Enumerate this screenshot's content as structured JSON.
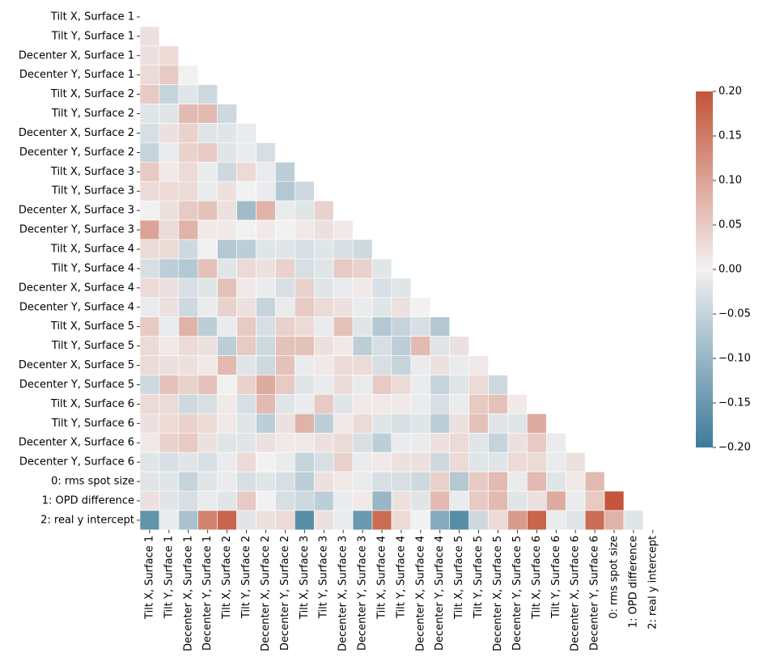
{
  "chart_data": {
    "type": "heatmap",
    "categories": [
      "Tilt X, Surface 1",
      "Tilt Y, Surface 1",
      "Decenter X, Surface 1",
      "Decenter Y, Surface 1",
      "Tilt X, Surface 2",
      "Tilt Y, Surface 2",
      "Decenter X, Surface 2",
      "Decenter Y, Surface 2",
      "Tilt X, Surface 3",
      "Tilt Y, Surface 3",
      "Decenter X, Surface 3",
      "Decenter Y, Surface 3",
      "Tilt X, Surface 4",
      "Tilt Y, Surface 4",
      "Decenter X, Surface 4",
      "Decenter Y, Surface 4",
      "Tilt X, Surface 5",
      "Tilt Y, Surface 5",
      "Decenter X, Surface 5",
      "Decenter Y, Surface 5",
      "Tilt X, Surface 6",
      "Tilt Y, Surface 6",
      "Decenter X, Surface 6",
      "Decenter Y, Surface 6",
      "0: rms spot size",
      "1: OPD difference",
      "2: real y intercept"
    ],
    "values": [
      [],
      [
        0.02
      ],
      [
        0.02,
        0.03
      ],
      [
        0.03,
        0.05,
        0.0
      ],
      [
        0.05,
        -0.05,
        -0.02,
        -0.04
      ],
      [
        -0.02,
        -0.02,
        0.07,
        0.07,
        -0.04
      ],
      [
        -0.03,
        0.02,
        0.04,
        -0.02,
        -0.02,
        -0.01
      ],
      [
        -0.05,
        -0.01,
        0.04,
        0.05,
        -0.02,
        -0.01,
        -0.03
      ],
      [
        0.05,
        0.01,
        0.03,
        -0.01,
        -0.04,
        0.03,
        -0.01,
        -0.06
      ],
      [
        0.03,
        0.03,
        0.03,
        -0.01,
        0.02,
        0.0,
        -0.01,
        -0.07,
        -0.04
      ],
      [
        0.0,
        0.02,
        0.05,
        0.06,
        0.02,
        -0.09,
        0.08,
        -0.01,
        -0.02,
        0.04
      ],
      [
        0.1,
        0.03,
        0.08,
        0.01,
        0.01,
        0.0,
        0.01,
        0.0,
        0.01,
        0.02,
        0.01
      ],
      [
        0.03,
        0.03,
        -0.04,
        0.0,
        -0.07,
        -0.06,
        -0.02,
        -0.02,
        -0.03,
        -0.02,
        -0.03,
        -0.04
      ],
      [
        -0.03,
        -0.06,
        -0.07,
        0.06,
        -0.02,
        0.03,
        0.02,
        0.04,
        -0.03,
        -0.02,
        0.05,
        0.04,
        -0.02
      ],
      [
        0.03,
        0.02,
        -0.03,
        -0.02,
        0.06,
        0.01,
        -0.01,
        -0.03,
        0.04,
        -0.02,
        -0.01,
        0.01,
        -0.03,
        -0.02
      ],
      [
        -0.01,
        0.02,
        -0.04,
        -0.01,
        0.04,
        0.02,
        -0.05,
        -0.01,
        0.05,
        0.03,
        0.02,
        -0.01,
        -0.02,
        0.02,
        0.0
      ],
      [
        0.05,
        -0.01,
        0.08,
        -0.06,
        -0.01,
        0.05,
        -0.03,
        0.04,
        0.03,
        -0.01,
        0.06,
        -0.02,
        -0.07,
        -0.05,
        -0.03,
        -0.07
      ],
      [
        0.03,
        0.01,
        0.03,
        0.02,
        -0.06,
        0.05,
        -0.04,
        0.06,
        0.06,
        0.02,
        0.01,
        -0.06,
        -0.03,
        -0.06,
        0.07,
        -0.02,
        0.02
      ],
      [
        0.03,
        0.02,
        0.02,
        0.01,
        0.07,
        -0.02,
        -0.04,
        0.06,
        -0.01,
        0.01,
        0.03,
        0.03,
        -0.03,
        -0.05,
        -0.01,
        0.02,
        -0.01,
        0.01
      ],
      [
        -0.04,
        0.06,
        0.04,
        0.06,
        0.0,
        0.04,
        0.09,
        0.05,
        -0.02,
        -0.01,
        0.03,
        -0.01,
        0.05,
        0.03,
        -0.01,
        -0.05,
        -0.02,
        0.03,
        -0.04
      ],
      [
        0.03,
        0.03,
        -0.04,
        -0.03,
        0.01,
        -0.03,
        0.07,
        -0.02,
        -0.01,
        0.05,
        -0.02,
        0.01,
        0.01,
        0.01,
        -0.01,
        -0.03,
        -0.01,
        0.05,
        0.06,
        0.01
      ],
      [
        0.02,
        0.03,
        0.04,
        0.03,
        0.01,
        -0.02,
        -0.06,
        0.02,
        0.08,
        -0.06,
        0.01,
        0.03,
        -0.02,
        -0.03,
        -0.02,
        -0.06,
        0.02,
        0.06,
        -0.02,
        -0.02,
        0.09
      ],
      [
        0.01,
        0.04,
        0.05,
        0.02,
        -0.02,
        -0.02,
        0.02,
        0.01,
        0.01,
        0.02,
        0.03,
        -0.03,
        -0.06,
        -0.01,
        -0.01,
        0.02,
        0.03,
        -0.02,
        -0.05,
        0.02,
        0.05,
        -0.01
      ],
      [
        -0.02,
        -0.03,
        -0.02,
        -0.03,
        -0.01,
        0.03,
        0.0,
        -0.01,
        -0.05,
        -0.03,
        0.04,
        -0.01,
        0.01,
        0.02,
        0.02,
        -0.04,
        0.03,
        -0.02,
        -0.02,
        0.03,
        0.03,
        -0.01,
        0.02
      ],
      [
        -0.02,
        -0.02,
        -0.05,
        -0.02,
        -0.01,
        -0.03,
        -0.02,
        -0.03,
        -0.06,
        0.02,
        0.01,
        -0.01,
        -0.03,
        -0.03,
        -0.04,
        0.04,
        -0.07,
        0.05,
        0.07,
        -0.01,
        0.07,
        -0.02,
        0.01,
        0.07
      ],
      [
        0.02,
        -0.02,
        -0.03,
        -0.01,
        -0.02,
        0.05,
        0.0,
        -0.03,
        -0.04,
        -0.06,
        -0.01,
        0.01,
        -0.1,
        0.02,
        -0.02,
        0.07,
        -0.01,
        0.05,
        0.07,
        -0.02,
        0.02,
        0.09,
        -0.01,
        0.05,
        0.2
      ],
      [
        -0.16,
        -0.01,
        -0.08,
        0.14,
        0.18,
        -0.02,
        0.02,
        0.03,
        -0.17,
        0.02,
        -0.01,
        -0.15,
        0.17,
        0.03,
        0.0,
        -0.12,
        -0.17,
        -0.04,
        0.03,
        0.11,
        0.18,
        -0.01,
        -0.02,
        0.17,
        0.08,
        -0.02
      ]
    ],
    "colormap": [
      "#3d7b99",
      "#f2f1f1",
      "#c4553a"
    ],
    "vlim": [
      -0.2,
      0.2
    ],
    "colorbar_ticks": [
      {
        "value": -0.2,
        "label": "−0.20"
      },
      {
        "value": -0.15,
        "label": "−0.15"
      },
      {
        "value": -0.1,
        "label": "−0.10"
      },
      {
        "value": -0.05,
        "label": "−0.05"
      },
      {
        "value": 0,
        "label": "0.00"
      },
      {
        "value": 0.05,
        "label": "0.05"
      },
      {
        "value": 0.1,
        "label": "0.10"
      },
      {
        "value": 0.15,
        "label": "0.15"
      },
      {
        "value": 0.2,
        "label": "0.20"
      }
    ]
  }
}
